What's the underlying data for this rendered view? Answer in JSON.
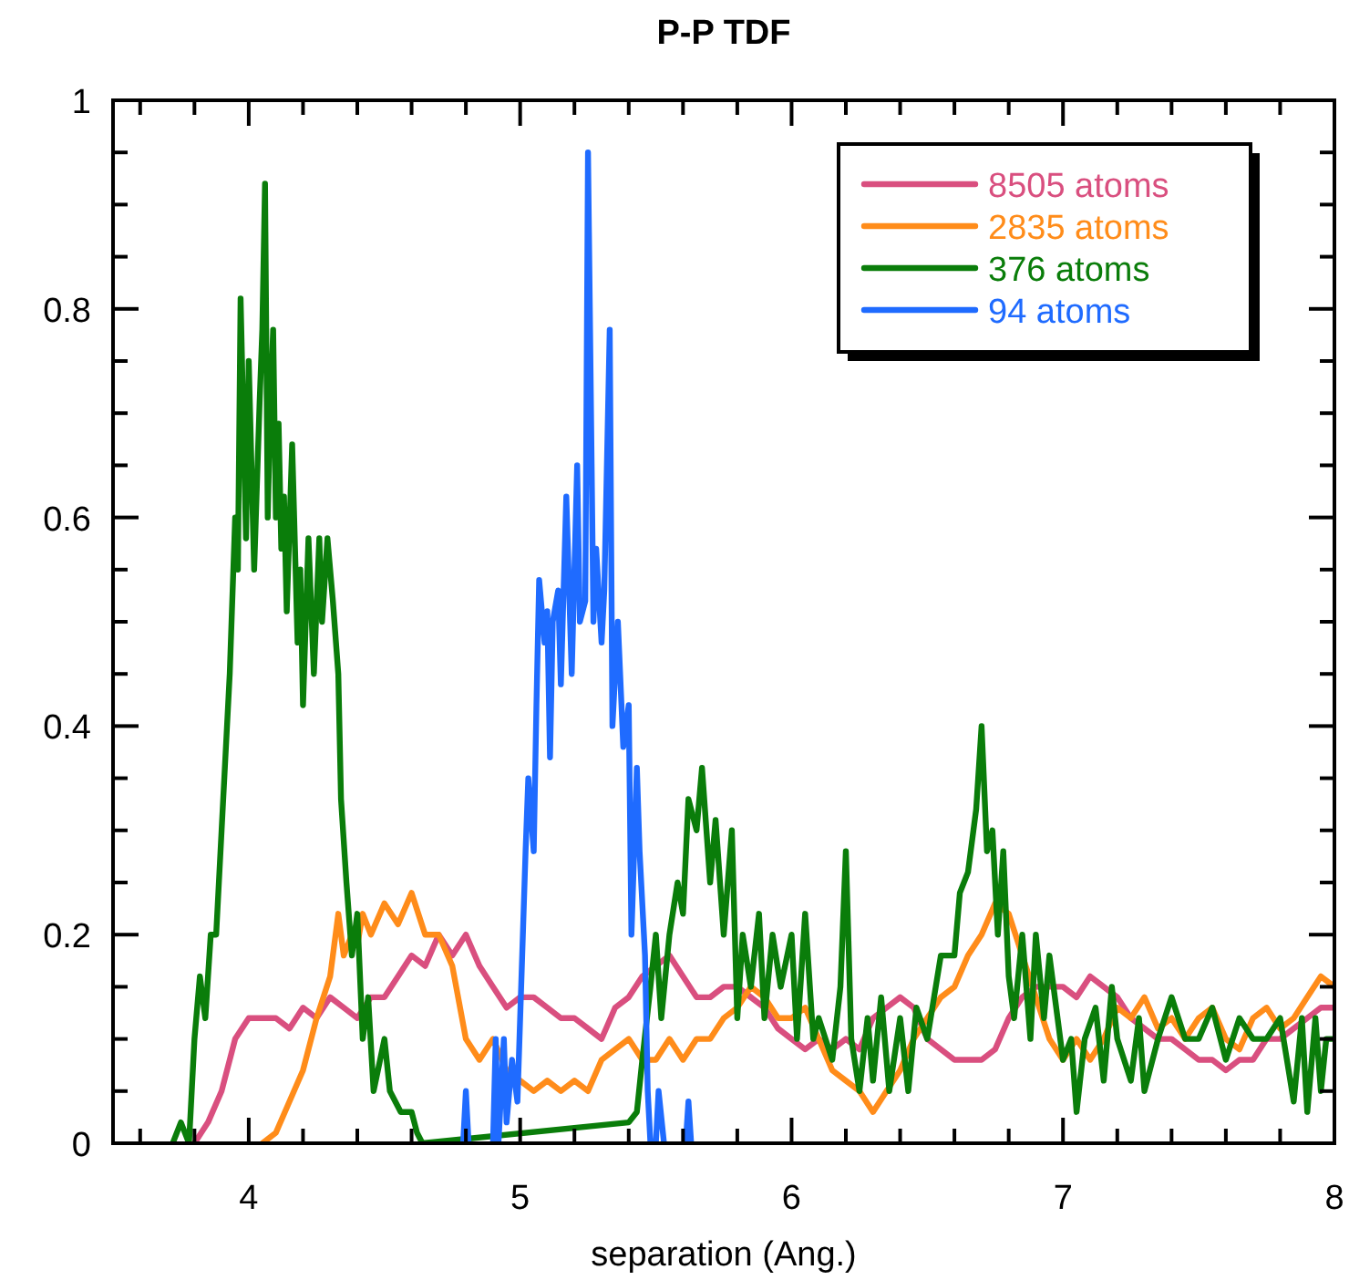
{
  "chart_data": {
    "type": "line",
    "title": "P-P TDF",
    "xlabel": "separation (Ang.)",
    "xlim": [
      3.5,
      8
    ],
    "xticks": [
      {
        "value": 3.6,
        "label": null
      },
      {
        "value": 3.8,
        "label": null
      },
      4,
      {
        "value": 4.2,
        "label": null
      },
      {
        "value": 4.4,
        "label": null
      },
      {
        "value": 4.6,
        "label": null
      },
      {
        "value": 4.8,
        "label": null
      },
      5,
      {
        "value": 5.2,
        "label": null
      },
      {
        "value": 5.4,
        "label": null
      },
      {
        "value": 5.6,
        "label": null
      },
      {
        "value": 5.8,
        "label": null
      },
      6,
      {
        "value": 6.2,
        "label": null
      },
      {
        "value": 6.4,
        "label": null
      },
      {
        "value": 6.6,
        "label": null
      },
      {
        "value": 6.8,
        "label": null
      },
      7,
      {
        "value": 7.2,
        "label": null
      },
      {
        "value": 7.4,
        "label": null
      },
      {
        "value": 7.6,
        "label": null
      },
      {
        "value": 7.8,
        "label": null
      },
      8
    ],
    "ylim": [
      0,
      1
    ],
    "yticks": [
      0,
      {
        "value": 0.05,
        "label": null
      },
      {
        "value": 0.1,
        "label": null
      },
      {
        "value": 0.15,
        "label": null
      },
      0.2,
      {
        "value": 0.25,
        "label": null
      },
      {
        "value": 0.3,
        "label": null
      },
      {
        "value": 0.35,
        "label": null
      },
      0.4,
      {
        "value": 0.45,
        "label": null
      },
      {
        "value": 0.5,
        "label": null
      },
      {
        "value": 0.55,
        "label": null
      },
      0.6,
      {
        "value": 0.65,
        "label": null
      },
      {
        "value": 0.7,
        "label": null
      },
      {
        "value": 0.75,
        "label": null
      },
      0.8,
      {
        "value": 0.85,
        "label": null
      },
      {
        "value": 0.9,
        "label": null
      },
      {
        "value": 0.95,
        "label": null
      },
      1
    ],
    "grid": false,
    "legend": "top right",
    "marker": "none",
    "line_style": "solid",
    "series": [
      {
        "name": "8505 atoms",
        "color": "#d94f7f",
        "x": [
          3.8,
          3.85,
          3.9,
          3.95,
          4.0,
          4.05,
          4.1,
          4.15,
          4.2,
          4.25,
          4.3,
          4.35,
          4.4,
          4.45,
          4.5,
          4.55,
          4.6,
          4.65,
          4.7,
          4.75,
          4.8,
          4.85,
          4.9,
          4.95,
          5.0,
          5.05,
          5.1,
          5.15,
          5.2,
          5.25,
          5.3,
          5.35,
          5.4,
          5.45,
          5.5,
          5.55,
          5.6,
          5.65,
          5.7,
          5.75,
          5.8,
          5.85,
          5.9,
          5.95,
          6.0,
          6.05,
          6.1,
          6.15,
          6.2,
          6.25,
          6.3,
          6.35,
          6.4,
          6.45,
          6.5,
          6.55,
          6.6,
          6.65,
          6.7,
          6.75,
          6.8,
          6.85,
          6.9,
          6.95,
          7.0,
          7.05,
          7.1,
          7.15,
          7.2,
          7.25,
          7.3,
          7.35,
          7.4,
          7.45,
          7.5,
          7.55,
          7.6,
          7.65,
          7.7,
          7.75,
          7.8,
          7.85,
          7.9,
          7.95,
          8.0
        ],
        "values": [
          0,
          0.02,
          0.05,
          0.1,
          0.12,
          0.12,
          0.12,
          0.11,
          0.13,
          0.12,
          0.14,
          0.13,
          0.12,
          0.14,
          0.14,
          0.16,
          0.18,
          0.17,
          0.2,
          0.18,
          0.2,
          0.17,
          0.15,
          0.13,
          0.14,
          0.14,
          0.13,
          0.12,
          0.12,
          0.11,
          0.1,
          0.13,
          0.14,
          0.16,
          0.17,
          0.18,
          0.16,
          0.14,
          0.14,
          0.15,
          0.15,
          0.14,
          0.13,
          0.11,
          0.1,
          0.09,
          0.1,
          0.09,
          0.1,
          0.09,
          0.12,
          0.13,
          0.14,
          0.13,
          0.1,
          0.09,
          0.08,
          0.08,
          0.08,
          0.09,
          0.12,
          0.14,
          0.15,
          0.15,
          0.15,
          0.14,
          0.16,
          0.15,
          0.14,
          0.12,
          0.11,
          0.1,
          0.1,
          0.09,
          0.08,
          0.08,
          0.07,
          0.08,
          0.08,
          0.1,
          0.1,
          0.11,
          0.12,
          0.13,
          0.13
        ]
      },
      {
        "name": "2835 atoms",
        "color": "#ff8c1a",
        "x": [
          4.05,
          4.1,
          4.15,
          4.2,
          4.25,
          4.3,
          4.33,
          4.35,
          4.38,
          4.4,
          4.42,
          4.45,
          4.5,
          4.55,
          4.6,
          4.65,
          4.7,
          4.75,
          4.8,
          4.85,
          4.9,
          4.95,
          5.0,
          5.05,
          5.1,
          5.15,
          5.2,
          5.25,
          5.3,
          5.35,
          5.4,
          5.45,
          5.5,
          5.55,
          5.6,
          5.65,
          5.7,
          5.75,
          5.8,
          5.85,
          5.9,
          5.95,
          6.0,
          6.05,
          6.1,
          6.15,
          6.2,
          6.25,
          6.3,
          6.35,
          6.4,
          6.45,
          6.5,
          6.55,
          6.6,
          6.65,
          6.7,
          6.75,
          6.8,
          6.85,
          6.9,
          6.95,
          7.0,
          7.05,
          7.1,
          7.15,
          7.2,
          7.25,
          7.3,
          7.35,
          7.4,
          7.45,
          7.5,
          7.55,
          7.6,
          7.65,
          7.7,
          7.75,
          7.8,
          7.85,
          7.9,
          7.95,
          8.0
        ],
        "values": [
          0,
          0.01,
          0.04,
          0.07,
          0.12,
          0.16,
          0.22,
          0.18,
          0.2,
          0.19,
          0.22,
          0.2,
          0.23,
          0.21,
          0.24,
          0.2,
          0.2,
          0.17,
          0.1,
          0.08,
          0.1,
          0.07,
          0.06,
          0.05,
          0.06,
          0.05,
          0.06,
          0.05,
          0.08,
          0.09,
          0.1,
          0.08,
          0.08,
          0.1,
          0.08,
          0.1,
          0.1,
          0.12,
          0.13,
          0.15,
          0.14,
          0.12,
          0.12,
          0.13,
          0.1,
          0.07,
          0.06,
          0.05,
          0.03,
          0.05,
          0.07,
          0.1,
          0.12,
          0.14,
          0.15,
          0.18,
          0.2,
          0.23,
          0.22,
          0.18,
          0.14,
          0.1,
          0.08,
          0.1,
          0.08,
          0.1,
          0.13,
          0.12,
          0.14,
          0.11,
          0.12,
          0.1,
          0.12,
          0.13,
          0.1,
          0.09,
          0.12,
          0.13,
          0.11,
          0.12,
          0.14,
          0.16,
          0.15
        ]
      },
      {
        "name": "376 atoms",
        "color": "#0a7d0a",
        "x": [
          3.72,
          3.75,
          3.78,
          3.8,
          3.82,
          3.84,
          3.86,
          3.88,
          3.9,
          3.93,
          3.95,
          3.96,
          3.97,
          3.99,
          4.0,
          4.02,
          4.04,
          4.05,
          4.06,
          4.07,
          4.08,
          4.09,
          4.1,
          4.11,
          4.12,
          4.13,
          4.14,
          4.16,
          4.18,
          4.19,
          4.2,
          4.22,
          4.24,
          4.26,
          4.27,
          4.29,
          4.31,
          4.33,
          4.34,
          4.36,
          4.38,
          4.4,
          4.42,
          4.44,
          4.46,
          4.5,
          4.52,
          4.56,
          4.6,
          4.62,
          4.64,
          5.4,
          5.43,
          5.45,
          5.48,
          5.5,
          5.52,
          5.55,
          5.58,
          5.6,
          5.62,
          5.65,
          5.67,
          5.7,
          5.72,
          5.75,
          5.78,
          5.8,
          5.82,
          5.85,
          5.88,
          5.9,
          5.93,
          5.96,
          6.0,
          6.02,
          6.05,
          6.08,
          6.1,
          6.15,
          6.18,
          6.2,
          6.22,
          6.25,
          6.28,
          6.3,
          6.33,
          6.36,
          6.4,
          6.43,
          6.46,
          6.5,
          6.55,
          6.6,
          6.62,
          6.65,
          6.68,
          6.7,
          6.72,
          6.74,
          6.76,
          6.78,
          6.8,
          6.82,
          6.85,
          6.88,
          6.9,
          6.93,
          6.95,
          7.0,
          7.03,
          7.05,
          7.08,
          7.12,
          7.15,
          7.18,
          7.2,
          7.25,
          7.28,
          7.3,
          7.35,
          7.4,
          7.45,
          7.5,
          7.55,
          7.6,
          7.65,
          7.7,
          7.75,
          7.8,
          7.85,
          7.88,
          7.9,
          7.93,
          7.95,
          7.97,
          8.0
        ],
        "values": [
          0,
          0.02,
          0,
          0.1,
          0.16,
          0.12,
          0.2,
          0.2,
          0.3,
          0.45,
          0.6,
          0.55,
          0.81,
          0.58,
          0.75,
          0.55,
          0.71,
          0.78,
          0.92,
          0.6,
          0.71,
          0.78,
          0.6,
          0.69,
          0.57,
          0.62,
          0.51,
          0.67,
          0.48,
          0.55,
          0.42,
          0.58,
          0.45,
          0.58,
          0.5,
          0.58,
          0.52,
          0.45,
          0.33,
          0.25,
          0.18,
          0.22,
          0.1,
          0.14,
          0.05,
          0.1,
          0.05,
          0.03,
          0.03,
          0.01,
          0,
          0.02,
          0.03,
          0.08,
          0.15,
          0.2,
          0.12,
          0.2,
          0.25,
          0.22,
          0.33,
          0.3,
          0.36,
          0.25,
          0.31,
          0.2,
          0.3,
          0.12,
          0.2,
          0.15,
          0.22,
          0.12,
          0.2,
          0.15,
          0.2,
          0.1,
          0.22,
          0.1,
          0.12,
          0.08,
          0.15,
          0.28,
          0.1,
          0.05,
          0.12,
          0.06,
          0.14,
          0.05,
          0.12,
          0.05,
          0.13,
          0.1,
          0.18,
          0.18,
          0.24,
          0.26,
          0.32,
          0.4,
          0.28,
          0.3,
          0.2,
          0.28,
          0.16,
          0.12,
          0.2,
          0.1,
          0.2,
          0.12,
          0.18,
          0.08,
          0.1,
          0.03,
          0.1,
          0.13,
          0.06,
          0.15,
          0.1,
          0.06,
          0.12,
          0.05,
          0.1,
          0.14,
          0.1,
          0.1,
          0.13,
          0.08,
          0.12,
          0.1,
          0.1,
          0.12,
          0.04,
          0.12,
          0.03,
          0.12,
          0.05,
          0.1,
          0.1
        ]
      },
      {
        "name": "94 atoms",
        "color": "#1f6bff",
        "x": [
          4.79,
          4.8,
          4.81,
          4.85,
          4.9,
          4.91,
          4.92,
          4.94,
          4.95,
          4.97,
          4.99,
          5.0,
          5.02,
          5.03,
          5.05,
          5.06,
          5.07,
          5.09,
          5.1,
          5.11,
          5.12,
          5.14,
          5.15,
          5.17,
          5.19,
          5.21,
          5.22,
          5.24,
          5.25,
          5.27,
          5.28,
          5.3,
          5.31,
          5.33,
          5.34,
          5.36,
          5.38,
          5.4,
          5.41,
          5.43,
          5.44,
          5.46,
          5.47,
          5.48,
          5.49,
          5.5,
          5.51,
          5.53,
          5.57,
          5.61,
          5.62,
          5.63
        ],
        "values": [
          0,
          0.05,
          0,
          null,
          0,
          0.1,
          0,
          0.1,
          0.02,
          0.08,
          0.04,
          0.12,
          0.28,
          0.35,
          0.28,
          0.42,
          0.54,
          0.48,
          0.51,
          0.37,
          0.5,
          0.53,
          0.44,
          0.62,
          0.45,
          0.65,
          0.5,
          0.52,
          0.95,
          0.5,
          0.57,
          0.48,
          0.53,
          0.78,
          0.4,
          0.5,
          0.38,
          0.42,
          0.2,
          0.36,
          0.28,
          0.18,
          0.05,
          0,
          null,
          0,
          0.05,
          0,
          null,
          0,
          0.04,
          0
        ]
      }
    ]
  }
}
